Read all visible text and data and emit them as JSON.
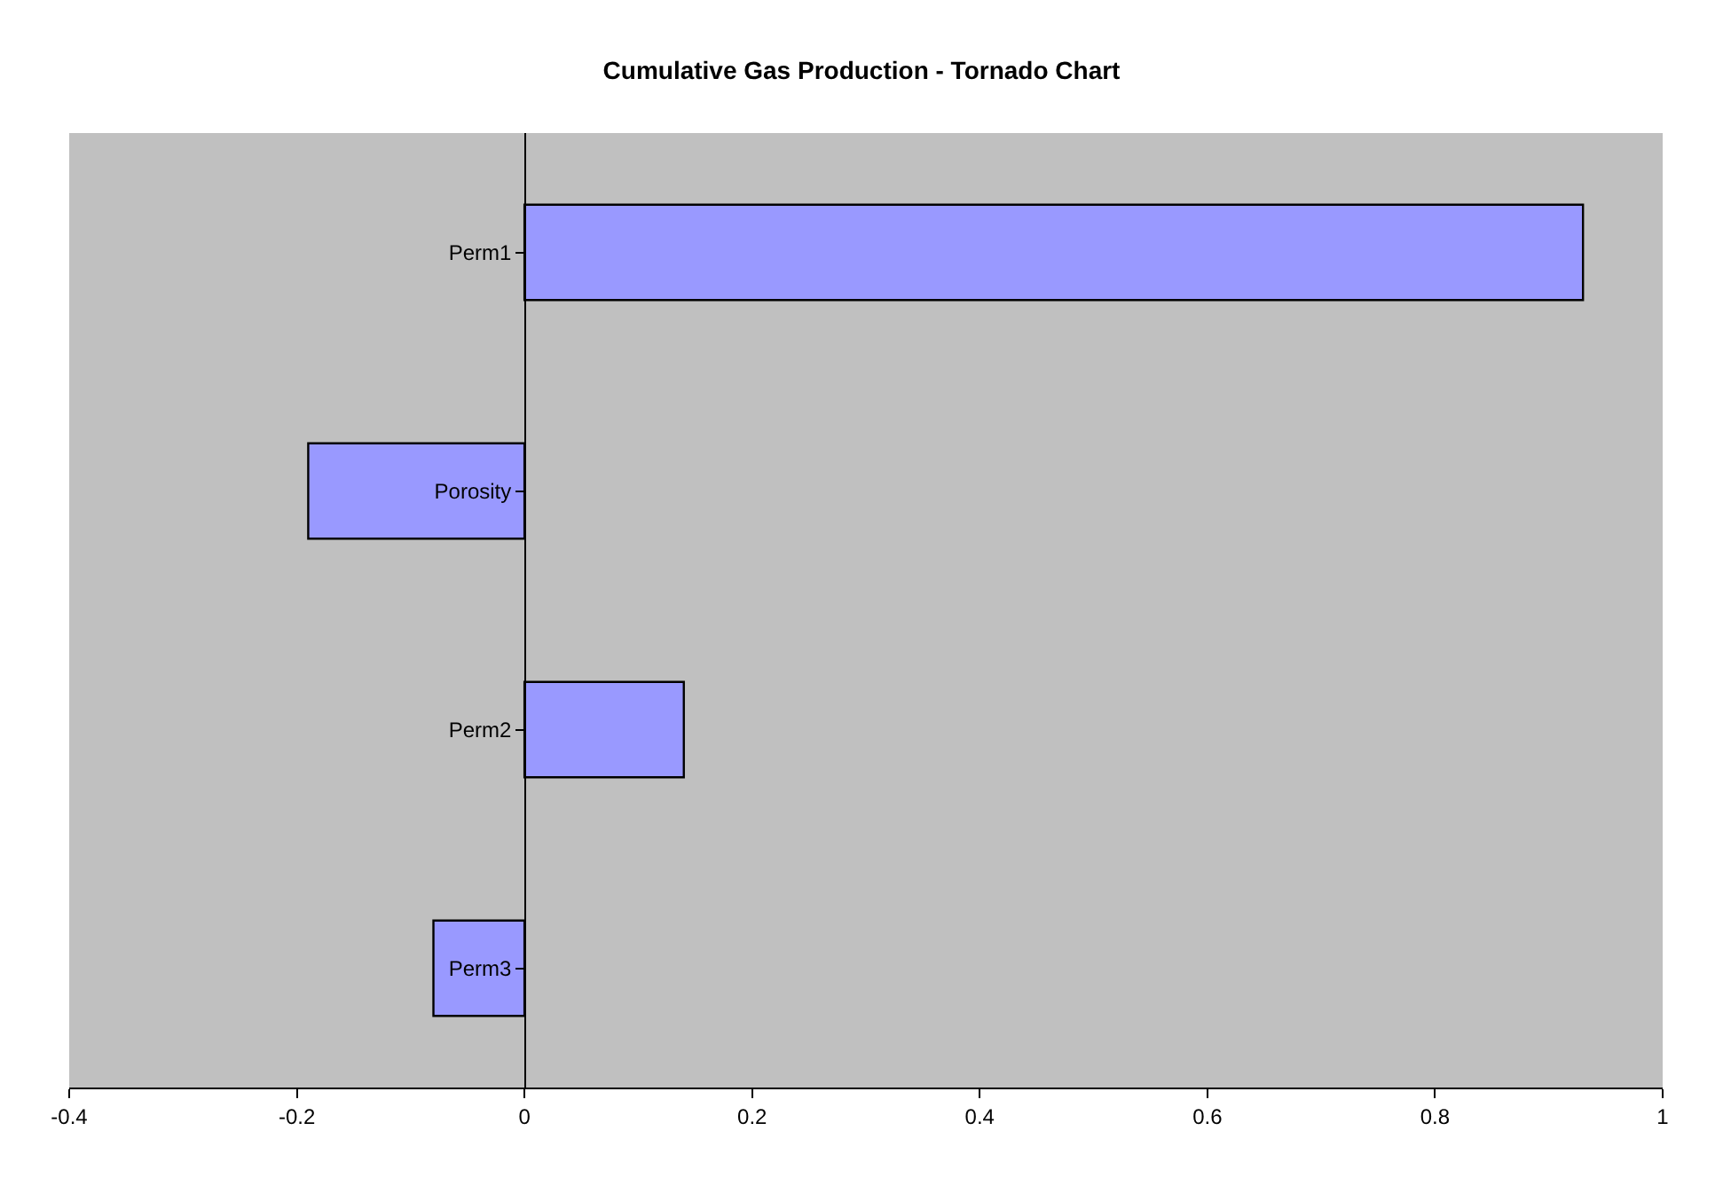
{
  "chart_data": {
    "type": "bar",
    "orientation": "horizontal",
    "title": "Cumulative Gas Production - Tornado Chart",
    "categories": [
      "Perm1",
      "Porosity",
      "Perm2",
      "Perm3"
    ],
    "values": [
      0.93,
      -0.19,
      0.14,
      -0.08
    ],
    "color": "#9999ff",
    "xlim": [
      -0.4,
      1
    ],
    "xticks": [
      -0.4,
      -0.2,
      0,
      0.2,
      0.4,
      0.6,
      0.8,
      1
    ],
    "grid": false
  }
}
